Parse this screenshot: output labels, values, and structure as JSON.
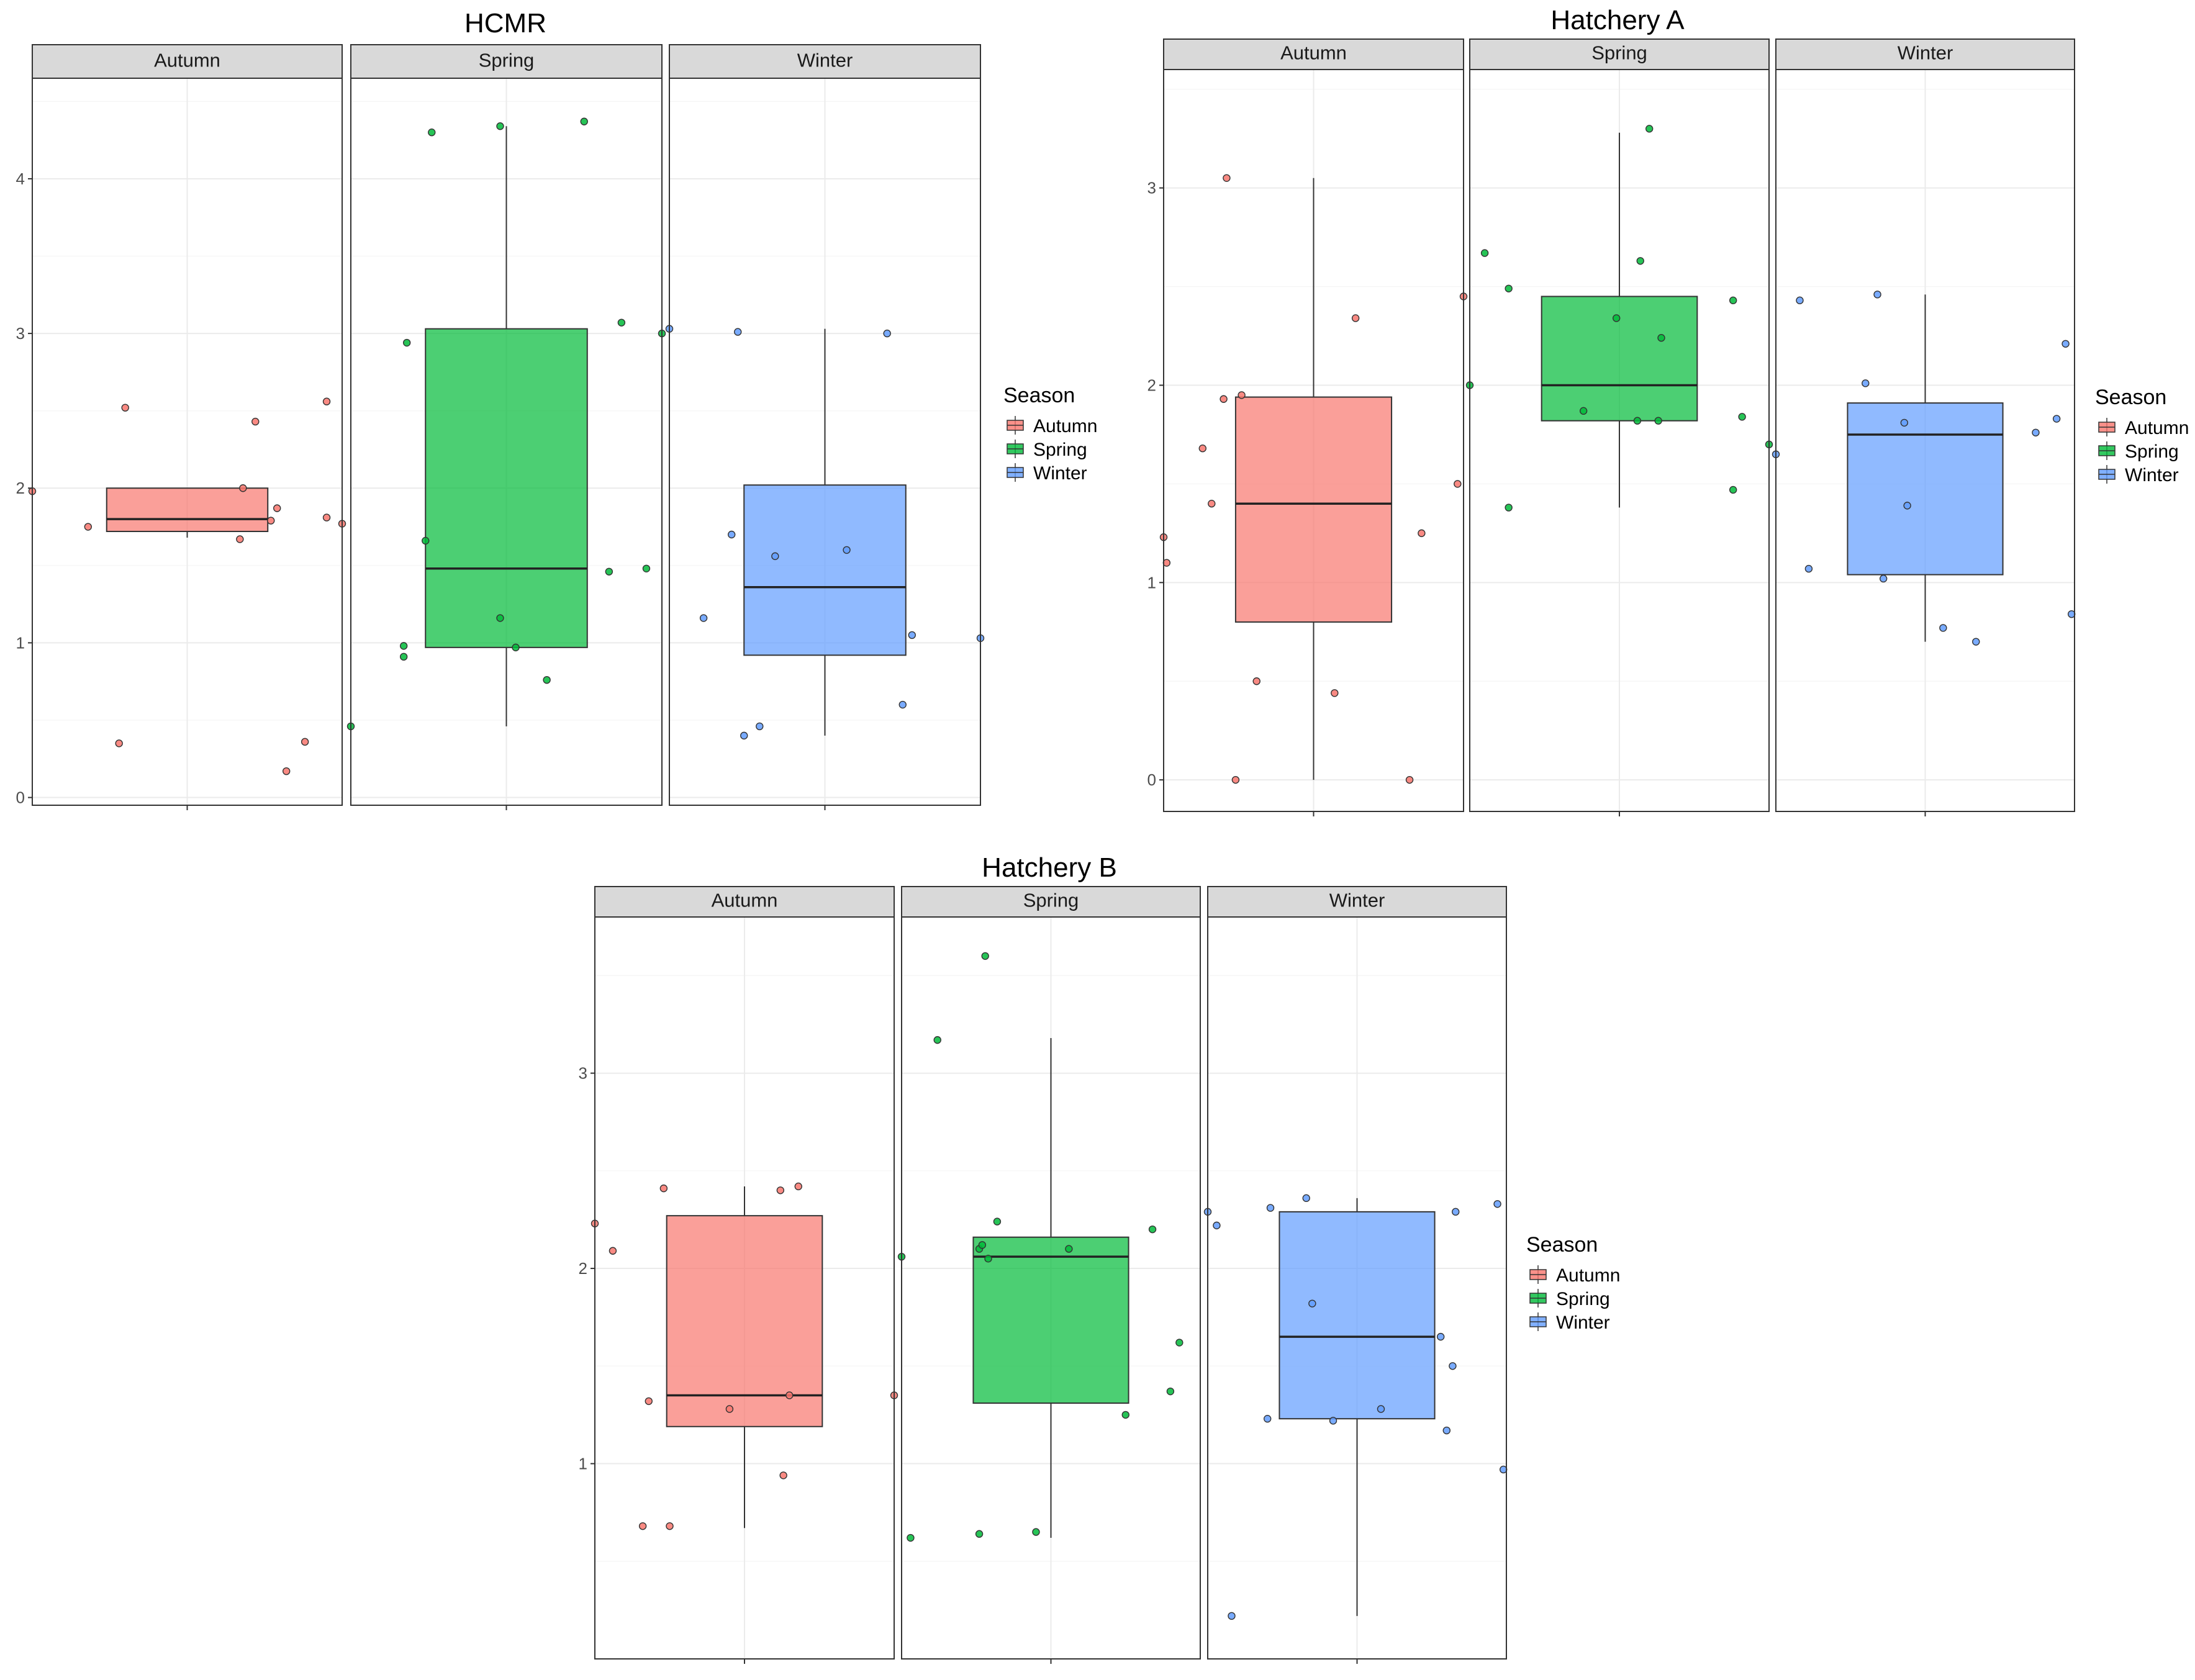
{
  "colors": {
    "Autumn": "#F8766D",
    "Spring": "#00BA38",
    "Winter": "#619CFF"
  },
  "legend": {
    "title": "Season",
    "items": [
      "Autumn",
      "Spring",
      "Winter"
    ]
  },
  "chart_data": [
    {
      "type": "boxplot",
      "title": "HCMR",
      "xlabel": "",
      "ylabel": "",
      "ylim": [
        -0.05,
        4.65
      ],
      "yticks": [
        0,
        1,
        2,
        3,
        4
      ],
      "grid": true,
      "legend_position": "right",
      "facets": [
        {
          "label": "Autumn",
          "box": {
            "q1": 1.72,
            "median": 1.8,
            "q3": 2.0,
            "whisker_low": 1.68,
            "whisker_high": 2.0
          },
          "points": [
            [
              0.0,
              1.98
            ],
            [
              0.18,
              1.75
            ],
            [
              0.3,
              2.52
            ],
            [
              0.28,
              0.35
            ],
            [
              0.72,
              2.43
            ],
            [
              0.68,
              2.0
            ],
            [
              0.67,
              1.67
            ],
            [
              0.79,
              1.87
            ],
            [
              0.77,
              1.79
            ],
            [
              0.82,
              0.17
            ],
            [
              0.88,
              0.36
            ],
            [
              0.95,
              2.56
            ],
            [
              0.95,
              1.81
            ],
            [
              1.0,
              1.77
            ]
          ]
        },
        {
          "label": "Spring",
          "box": {
            "q1": 0.97,
            "median": 1.48,
            "q3": 3.03,
            "whisker_low": 0.46,
            "whisker_high": 4.34
          },
          "points": [
            [
              0.0,
              0.46
            ],
            [
              0.17,
              0.91
            ],
            [
              0.17,
              0.98
            ],
            [
              0.18,
              2.94
            ],
            [
              0.26,
              4.3
            ],
            [
              0.24,
              1.66
            ],
            [
              0.48,
              4.34
            ],
            [
              0.48,
              1.16
            ],
            [
              0.53,
              0.97
            ],
            [
              0.63,
              0.76
            ],
            [
              0.75,
              4.37
            ],
            [
              0.83,
              1.46
            ],
            [
              0.87,
              3.07
            ],
            [
              0.95,
              1.48
            ],
            [
              1.0,
              3.0
            ]
          ]
        },
        {
          "label": "Winter",
          "box": {
            "q1": 0.92,
            "median": 1.36,
            "q3": 2.02,
            "whisker_low": 0.4,
            "whisker_high": 3.03
          },
          "points": [
            [
              0.0,
              3.03
            ],
            [
              0.11,
              1.16
            ],
            [
              0.2,
              1.7
            ],
            [
              0.22,
              3.01
            ],
            [
              0.24,
              0.4
            ],
            [
              0.29,
              0.46
            ],
            [
              0.34,
              1.56
            ],
            [
              0.57,
              1.6
            ],
            [
              0.7,
              3.0
            ],
            [
              0.75,
              0.6
            ],
            [
              0.78,
              1.05
            ],
            [
              1.0,
              1.03
            ]
          ]
        }
      ]
    },
    {
      "type": "boxplot",
      "title": "Hatchery A",
      "xlabel": "",
      "ylabel": "",
      "ylim": [
        -0.16,
        3.6
      ],
      "yticks": [
        0,
        1,
        2,
        3
      ],
      "grid": true,
      "legend_position": "right",
      "facets": [
        {
          "label": "Autumn",
          "box": {
            "q1": 0.8,
            "median": 1.4,
            "q3": 1.94,
            "whisker_low": 0.0,
            "whisker_high": 3.05
          },
          "points": [
            [
              0.0,
              1.23
            ],
            [
              0.01,
              1.1
            ],
            [
              0.13,
              1.68
            ],
            [
              0.16,
              1.4
            ],
            [
              0.2,
              1.93
            ],
            [
              0.21,
              3.05
            ],
            [
              0.24,
              0.0
            ],
            [
              0.26,
              1.95
            ],
            [
              0.31,
              0.5
            ],
            [
              0.57,
              0.44
            ],
            [
              0.64,
              2.34
            ],
            [
              0.82,
              0.0
            ],
            [
              0.86,
              1.25
            ],
            [
              0.98,
              1.5
            ],
            [
              1.0,
              2.45
            ]
          ]
        },
        {
          "label": "Spring",
          "box": {
            "q1": 1.82,
            "median": 2.0,
            "q3": 2.45,
            "whisker_low": 1.38,
            "whisker_high": 3.28
          },
          "points": [
            [
              0.0,
              2.0
            ],
            [
              0.05,
              2.67
            ],
            [
              0.13,
              2.49
            ],
            [
              0.13,
              1.38
            ],
            [
              0.38,
              1.87
            ],
            [
              0.49,
              2.34
            ],
            [
              0.56,
              1.82
            ],
            [
              0.57,
              2.63
            ],
            [
              0.6,
              3.3
            ],
            [
              0.64,
              2.24
            ],
            [
              0.63,
              1.82
            ],
            [
              0.88,
              1.47
            ],
            [
              0.88,
              2.43
            ],
            [
              0.91,
              1.84
            ],
            [
              1.0,
              1.7
            ]
          ]
        },
        {
          "label": "Winter",
          "box": {
            "q1": 1.04,
            "median": 1.75,
            "q3": 1.91,
            "whisker_low": 0.7,
            "whisker_high": 2.46
          },
          "points": [
            [
              0.0,
              1.65
            ],
            [
              0.08,
              2.43
            ],
            [
              0.11,
              1.07
            ],
            [
              0.3,
              2.01
            ],
            [
              0.34,
              2.46
            ],
            [
              0.36,
              1.02
            ],
            [
              0.43,
              1.81
            ],
            [
              0.44,
              1.39
            ],
            [
              0.56,
              0.77
            ],
            [
              0.67,
              0.7
            ],
            [
              0.87,
              1.76
            ],
            [
              0.94,
              1.83
            ],
            [
              0.97,
              2.21
            ],
            [
              0.99,
              0.84
            ]
          ]
        }
      ]
    },
    {
      "type": "boxplot",
      "title": "Hatchery B",
      "xlabel": "",
      "ylabel": "",
      "ylim": [
        0.0,
        3.8
      ],
      "yticks": [
        1,
        2,
        3
      ],
      "grid": true,
      "legend_position": "right",
      "facets": [
        {
          "label": "Autumn",
          "box": {
            "q1": 1.19,
            "median": 1.35,
            "q3": 2.27,
            "whisker_low": 0.67,
            "whisker_high": 2.42
          },
          "points": [
            [
              0.0,
              2.23
            ],
            [
              0.06,
              2.09
            ],
            [
              0.16,
              0.68
            ],
            [
              0.18,
              1.32
            ],
            [
              0.23,
              2.41
            ],
            [
              0.25,
              0.68
            ],
            [
              0.45,
              1.28
            ],
            [
              0.62,
              2.4
            ],
            [
              0.63,
              0.94
            ],
            [
              0.65,
              1.35
            ],
            [
              0.68,
              2.42
            ],
            [
              1.0,
              1.35
            ]
          ]
        },
        {
          "label": "Spring",
          "box": {
            "q1": 1.31,
            "median": 2.06,
            "q3": 2.16,
            "whisker_low": 0.62,
            "whisker_high": 3.18
          },
          "points": [
            [
              0.0,
              2.06
            ],
            [
              0.03,
              0.62
            ],
            [
              0.12,
              3.17
            ],
            [
              0.26,
              0.64
            ],
            [
              0.26,
              2.1
            ],
            [
              0.27,
              2.12
            ],
            [
              0.28,
              3.6
            ],
            [
              0.29,
              2.05
            ],
            [
              0.32,
              2.24
            ],
            [
              0.45,
              0.65
            ],
            [
              0.56,
              2.1
            ],
            [
              0.75,
              1.25
            ],
            [
              0.84,
              2.2
            ],
            [
              0.9,
              1.37
            ],
            [
              0.93,
              1.62
            ]
          ]
        },
        {
          "label": "Winter",
          "box": {
            "q1": 1.23,
            "median": 1.65,
            "q3": 2.29,
            "whisker_low": 0.22,
            "whisker_high": 2.36
          },
          "points": [
            [
              0.0,
              2.29
            ],
            [
              0.03,
              2.22
            ],
            [
              0.08,
              0.22
            ],
            [
              0.2,
              1.23
            ],
            [
              0.21,
              2.31
            ],
            [
              0.33,
              2.36
            ],
            [
              0.35,
              1.82
            ],
            [
              0.42,
              1.22
            ],
            [
              0.58,
              1.28
            ],
            [
              0.78,
              1.65
            ],
            [
              0.8,
              1.17
            ],
            [
              0.82,
              1.5
            ],
            [
              0.83,
              2.29
            ],
            [
              0.97,
              2.33
            ],
            [
              0.99,
              0.97
            ]
          ]
        }
      ]
    }
  ]
}
